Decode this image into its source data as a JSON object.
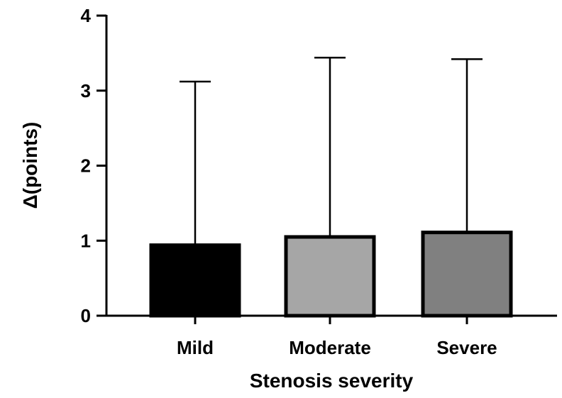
{
  "chart_data": {
    "type": "bar",
    "title": "",
    "xlabel": "Stenosis severity",
    "ylabel": "Δ(points)",
    "categories": [
      "Mild",
      "Moderate",
      "Severe"
    ],
    "values": [
      0.94,
      1.05,
      1.11
    ],
    "error_upper": [
      3.12,
      3.44,
      3.42
    ],
    "bar_colors": [
      "#000000",
      "#a6a6a6",
      "#808080"
    ],
    "bar_outline_color": "#000000",
    "ylim": [
      0,
      4
    ],
    "yticks": [
      "0",
      "1",
      "2",
      "3",
      "4"
    ],
    "grid": false,
    "legend": "none"
  }
}
